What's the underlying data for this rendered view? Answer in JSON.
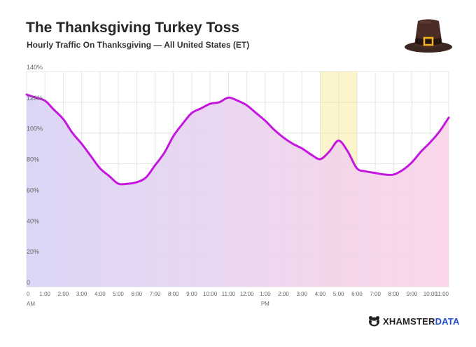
{
  "header": {
    "title": "The Thanksgiving Turkey Toss",
    "subtitle": "Hourly Traffic On Thanksgiving — All United States (ET)"
  },
  "branding": {
    "name_part1": "XHAMSTER",
    "name_part2": "DATA",
    "icon": "hamster-logo-icon"
  },
  "decoration": {
    "icon": "pilgrim-hat-icon"
  },
  "colors": {
    "line": "#c516e0",
    "highlight": "#f5e27c",
    "fill_start": "#d8d2f5",
    "fill_end": "#fbd3e8",
    "grid": "#e4e4e4"
  },
  "chart_data": {
    "type": "area",
    "title": "The Thanksgiving Turkey Toss",
    "subtitle": "Hourly Traffic On Thanksgiving — All United States (ET)",
    "xlabel": "",
    "ylabel": "",
    "ylim": [
      0,
      140
    ],
    "y_ticks": [
      "0",
      "20%",
      "40%",
      "60%",
      "80%",
      "100%",
      "120%",
      "140%"
    ],
    "x_ticks": [
      "0",
      "1:00",
      "2:00",
      "3:00",
      "4:00",
      "5:00",
      "6:00",
      "7:00",
      "8:00",
      "9:00",
      "10:00",
      "11:00",
      "12:00",
      "1:00",
      "2:00",
      "3:00",
      "4:00",
      "5:00",
      "6:00",
      "7:00",
      "8:00",
      "9:00",
      "10:00",
      "11:00"
    ],
    "x_subticks": [
      {
        "index": 0,
        "text": "AM"
      },
      {
        "index": 13,
        "text": "PM"
      }
    ],
    "grid": true,
    "highlight": {
      "from_hour": 16,
      "to_hour": 18
    },
    "x": [
      0,
      0.5,
      1,
      1.5,
      2,
      2.5,
      3,
      3.5,
      4,
      4.5,
      5,
      5.5,
      6,
      6.5,
      7,
      7.5,
      8,
      8.5,
      9,
      9.5,
      10,
      10.5,
      11,
      11.5,
      12,
      12.5,
      13,
      13.5,
      14,
      14.5,
      15,
      15.5,
      16,
      16.5,
      17,
      17.5,
      18,
      18.5,
      19,
      19.5,
      20,
      20.5,
      21,
      21.5,
      22,
      22.5,
      23
    ],
    "series": [
      {
        "values": [
          125,
          123,
          121,
          115,
          109,
          100,
          93,
          85,
          77,
          72,
          67,
          67,
          68,
          71,
          79,
          87,
          98,
          106,
          113,
          116,
          119,
          120,
          123,
          121,
          118,
          113,
          108,
          102,
          97,
          93,
          90,
          86,
          83,
          88,
          95,
          88,
          77,
          75,
          74,
          73,
          73,
          76,
          81,
          88,
          94,
          101,
          110
        ]
      }
    ]
  }
}
